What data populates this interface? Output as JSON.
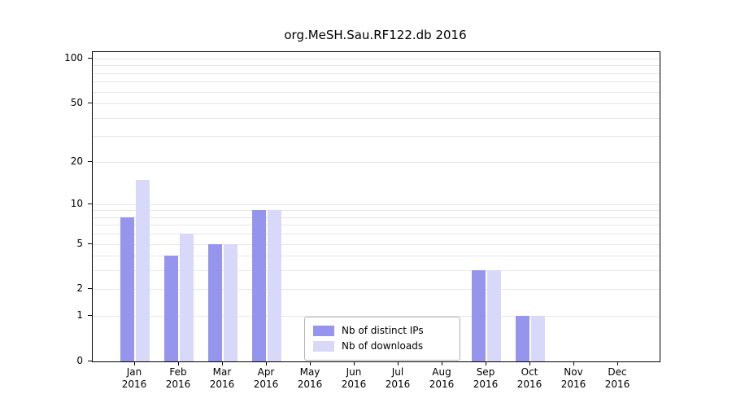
{
  "title": "org.MeSH.Sau.RF122.db 2016",
  "legend": {
    "items": [
      {
        "label": "Nb of distinct IPs",
        "color": "#9595ee"
      },
      {
        "label": "Nb of downloads",
        "color": "#d8d8f8"
      }
    ]
  },
  "chart_data": {
    "type": "bar",
    "title": "org.MeSH.Sau.RF122.db 2016",
    "categories": [
      "Jan 2016",
      "Feb 2016",
      "Mar 2016",
      "Apr 2016",
      "May 2016",
      "Jun 2016",
      "Jul 2016",
      "Aug 2016",
      "Sep 2016",
      "Oct 2016",
      "Nov 2016",
      "Dec 2016"
    ],
    "x_months": [
      "Jan",
      "Feb",
      "Mar",
      "Apr",
      "May",
      "Jun",
      "Jul",
      "Aug",
      "Sep",
      "Oct",
      "Nov",
      "Dec"
    ],
    "year": "2016",
    "series": [
      {
        "name": "Nb of distinct IPs",
        "color": "#9595ee",
        "values": [
          8,
          4,
          5,
          9,
          0,
          0,
          0,
          0,
          3,
          1,
          0,
          0
        ]
      },
      {
        "name": "Nb of downloads",
        "color": "#d8d8f8",
        "values": [
          15,
          6,
          5,
          9,
          0,
          0,
          0,
          0,
          3,
          1,
          0,
          0
        ]
      }
    ],
    "y_scale": "log1p",
    "y_ticks": [
      0,
      1,
      2,
      5,
      10,
      20,
      50,
      100
    ],
    "y_gridlines": [
      1,
      2,
      3,
      4,
      5,
      6,
      7,
      8,
      9,
      10,
      20,
      30,
      40,
      50,
      60,
      70,
      80,
      90,
      100
    ],
    "ylim": [
      0,
      110
    ],
    "grid": true,
    "legend_position": "bottom-center"
  }
}
